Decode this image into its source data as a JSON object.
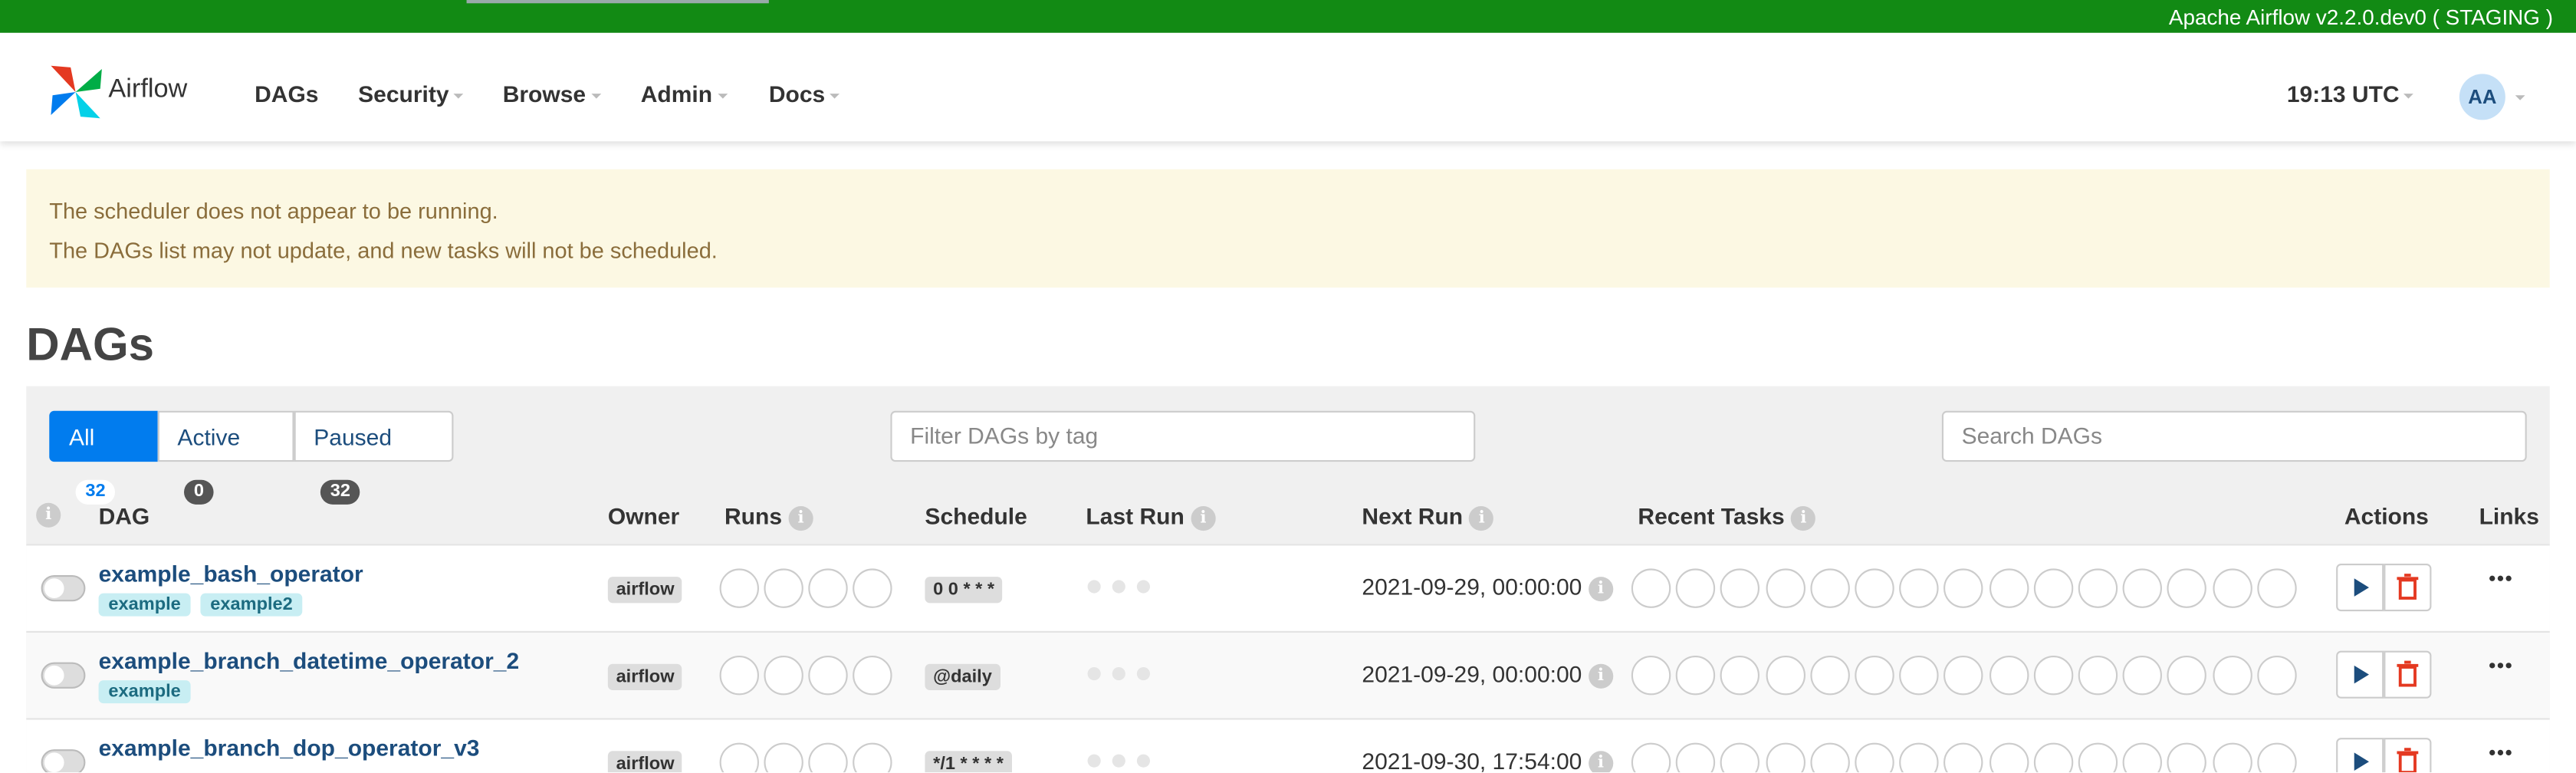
{
  "banner": "Apache Airflow v2.2.0.dev0 ( STAGING )",
  "nav": {
    "brand": "Airflow",
    "items": [
      "DAGs",
      "Security",
      "Browse",
      "Admin",
      "Docs"
    ],
    "time": "19:13 UTC",
    "user": "AA"
  },
  "alert": {
    "lines": [
      "The scheduler does not appear to be running.",
      "The DAGs list may not update, and new tasks will not be scheduled."
    ]
  },
  "page_title": "DAGs",
  "filters": [
    {
      "label": "All",
      "count": 32
    },
    {
      "label": "Active",
      "count": 0
    },
    {
      "label": "Paused",
      "count": 32
    }
  ],
  "tag_filter_placeholder": "Filter DAGs by tag",
  "search_placeholder": "Search DAGs",
  "table": {
    "headers": [
      "DAG",
      "Owner",
      "Runs",
      "Schedule",
      "Last Run",
      "Next Run",
      "Recent Tasks",
      "Actions",
      "Links"
    ],
    "rows": [
      {
        "dag_id": "example_bash_operator",
        "tags": [
          "example",
          "example2"
        ],
        "owner": "airflow",
        "schedule": "0 0 * * *",
        "next_run": "2021-09-29, 00:00:00"
      },
      {
        "dag_id": "example_branch_datetime_operator_2",
        "tags": [
          "example"
        ],
        "owner": "airflow",
        "schedule": "@daily",
        "next_run": "2021-09-29, 00:00:00"
      },
      {
        "dag_id": "example_branch_dop_operator_v3",
        "tags": [],
        "owner": "airflow",
        "schedule": "*/1 * * * *",
        "next_run": "2021-09-30, 17:54:00"
      }
    ]
  }
}
